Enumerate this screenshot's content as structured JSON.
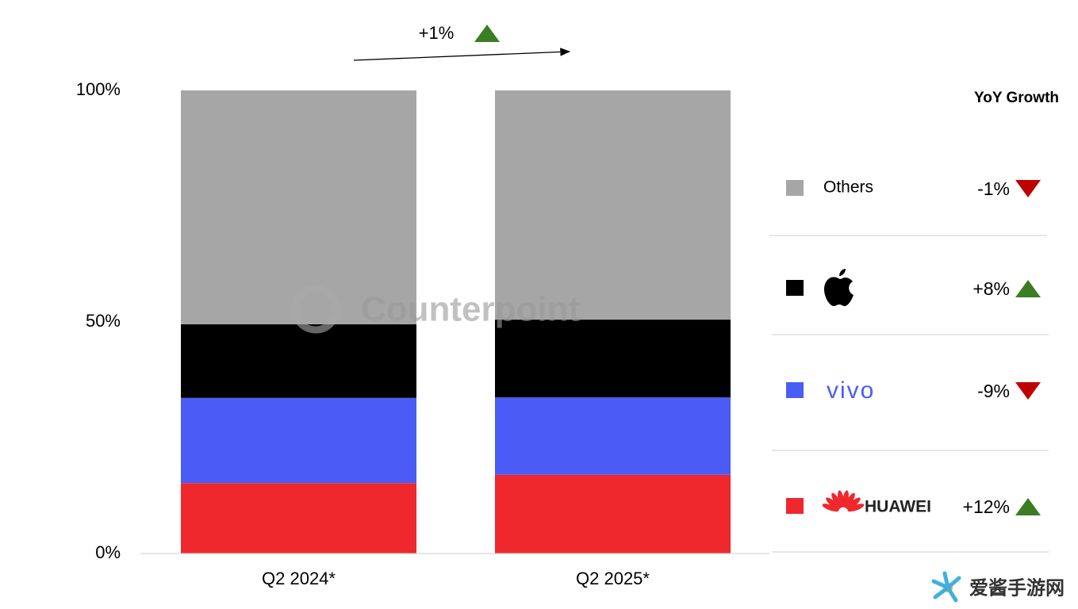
{
  "chart_data": {
    "type": "stacked_bar",
    "categories": [
      "Q2 2024*",
      "Q2 2025*"
    ],
    "series": [
      {
        "name": "HUAWEI",
        "color": "#ee282d",
        "values": [
          15.2,
          17.0
        ],
        "growth": 12,
        "growth_label": "+12%"
      },
      {
        "name": "vivo",
        "color": "#4a5cf5",
        "values": [
          18.4,
          16.7
        ],
        "growth": -9,
        "growth_label": "-9%"
      },
      {
        "name": null,
        "color": "#000000",
        "values": [
          15.9,
          16.8
        ],
        "growth": 8,
        "growth_label": "+8%"
      },
      {
        "name": "Others",
        "color": "#a6a6a6",
        "values": [
          50.5,
          49.5
        ],
        "growth": -1,
        "growth_label": "-1%"
      }
    ],
    "ylim": [
      0,
      100
    ],
    "yticks": [
      {
        "value": 0,
        "label": "0%"
      },
      {
        "value": 50,
        "label": "50%"
      },
      {
        "value": 100,
        "label": "100%"
      }
    ],
    "growth_header": "YoY Growth",
    "total_growth": 1,
    "total_growth_label": "+1%",
    "up_color": "#3a7d22",
    "down_color": "#c00000",
    "watermark": "Counterpoint",
    "site_watermark": "爱酱手游网"
  }
}
